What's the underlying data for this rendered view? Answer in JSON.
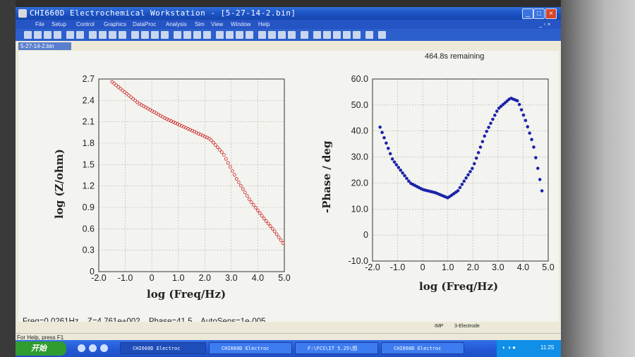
{
  "window": {
    "title": "CHI660D Electrochemical Workstation - [5-27-14-2.bin]",
    "doc_tab": "5-27-14-2.bin"
  },
  "menu": [
    "File",
    "Setup",
    "Control",
    "Graphics",
    "DataProc",
    "Analysis",
    "Sim",
    "View",
    "Window",
    "Help"
  ],
  "header": {
    "remaining": "464.8s remaining"
  },
  "status": {
    "freq": "Freq=0.0261Hz",
    "z": "Z=4.761e+002",
    "phase": "Phase=41.5",
    "autosens": "AutoSens=1e-005",
    "mode": "IMP",
    "electrode": "3-Electrode",
    "help": "For Help, press F1"
  },
  "taskbar": {
    "start": "开始",
    "tasks": [
      "CHI660D Electroc",
      "CHI660D Electroc",
      "F:\\FCS\\IT 5.25\\图",
      "CHI660D Electroc"
    ],
    "clock": "11:25"
  },
  "colors": {
    "impedance": "#cc2222",
    "phase": "#1a22a8"
  },
  "chart_data": [
    {
      "type": "scatter",
      "xlabel": "log (Freq/Hz)",
      "ylabel": "log (Z/ohm)",
      "xlim": [
        -2.0,
        5.0
      ],
      "ylim": [
        0,
        2.7
      ],
      "xticks": [
        "-2.0",
        "-1.0",
        "0",
        "1.0",
        "2.0",
        "3.0",
        "4.0",
        "5.0"
      ],
      "yticks": [
        "0",
        "0.3",
        "0.6",
        "0.9",
        "1.2",
        "1.5",
        "1.8",
        "2.1",
        "2.4",
        "2.7"
      ],
      "grid": true,
      "marker": "open-circle",
      "anchors": [
        [
          -1.5,
          2.66
        ],
        [
          -0.5,
          2.36
        ],
        [
          0.5,
          2.15
        ],
        [
          1.5,
          1.98
        ],
        [
          2.2,
          1.86
        ],
        [
          2.7,
          1.65
        ],
        [
          3.2,
          1.3
        ],
        [
          3.7,
          1.0
        ],
        [
          4.2,
          0.76
        ],
        [
          4.6,
          0.58
        ],
        [
          4.95,
          0.4
        ]
      ],
      "n_points": 82
    },
    {
      "type": "scatter",
      "xlabel": "log (Freq/Hz)",
      "ylabel": "-Phase / deg",
      "xlim": [
        -2.0,
        5.0
      ],
      "ylim": [
        -10.0,
        60.0
      ],
      "xticks": [
        "-2.0",
        "-1.0",
        "0",
        "1.0",
        "2.0",
        "3.0",
        "4.0",
        "5.0"
      ],
      "yticks": [
        "-10.0",
        "0",
        "10.0",
        "20.0",
        "30.0",
        "40.0",
        "50.0",
        "60.0"
      ],
      "grid": true,
      "marker": "filled-circle",
      "anchors": [
        [
          -1.7,
          41.5
        ],
        [
          -1.2,
          29.0
        ],
        [
          -0.5,
          20.0
        ],
        [
          0.0,
          17.5
        ],
        [
          0.5,
          16.3
        ],
        [
          1.0,
          14.3
        ],
        [
          1.4,
          17.0
        ],
        [
          2.0,
          26.0
        ],
        [
          2.5,
          39.0
        ],
        [
          3.0,
          48.5
        ],
        [
          3.5,
          52.7
        ],
        [
          3.8,
          51.5
        ],
        [
          4.1,
          44.0
        ],
        [
          4.4,
          35.0
        ],
        [
          4.6,
          25.0
        ],
        [
          4.75,
          17.0
        ]
      ],
      "n_points": 80
    }
  ]
}
